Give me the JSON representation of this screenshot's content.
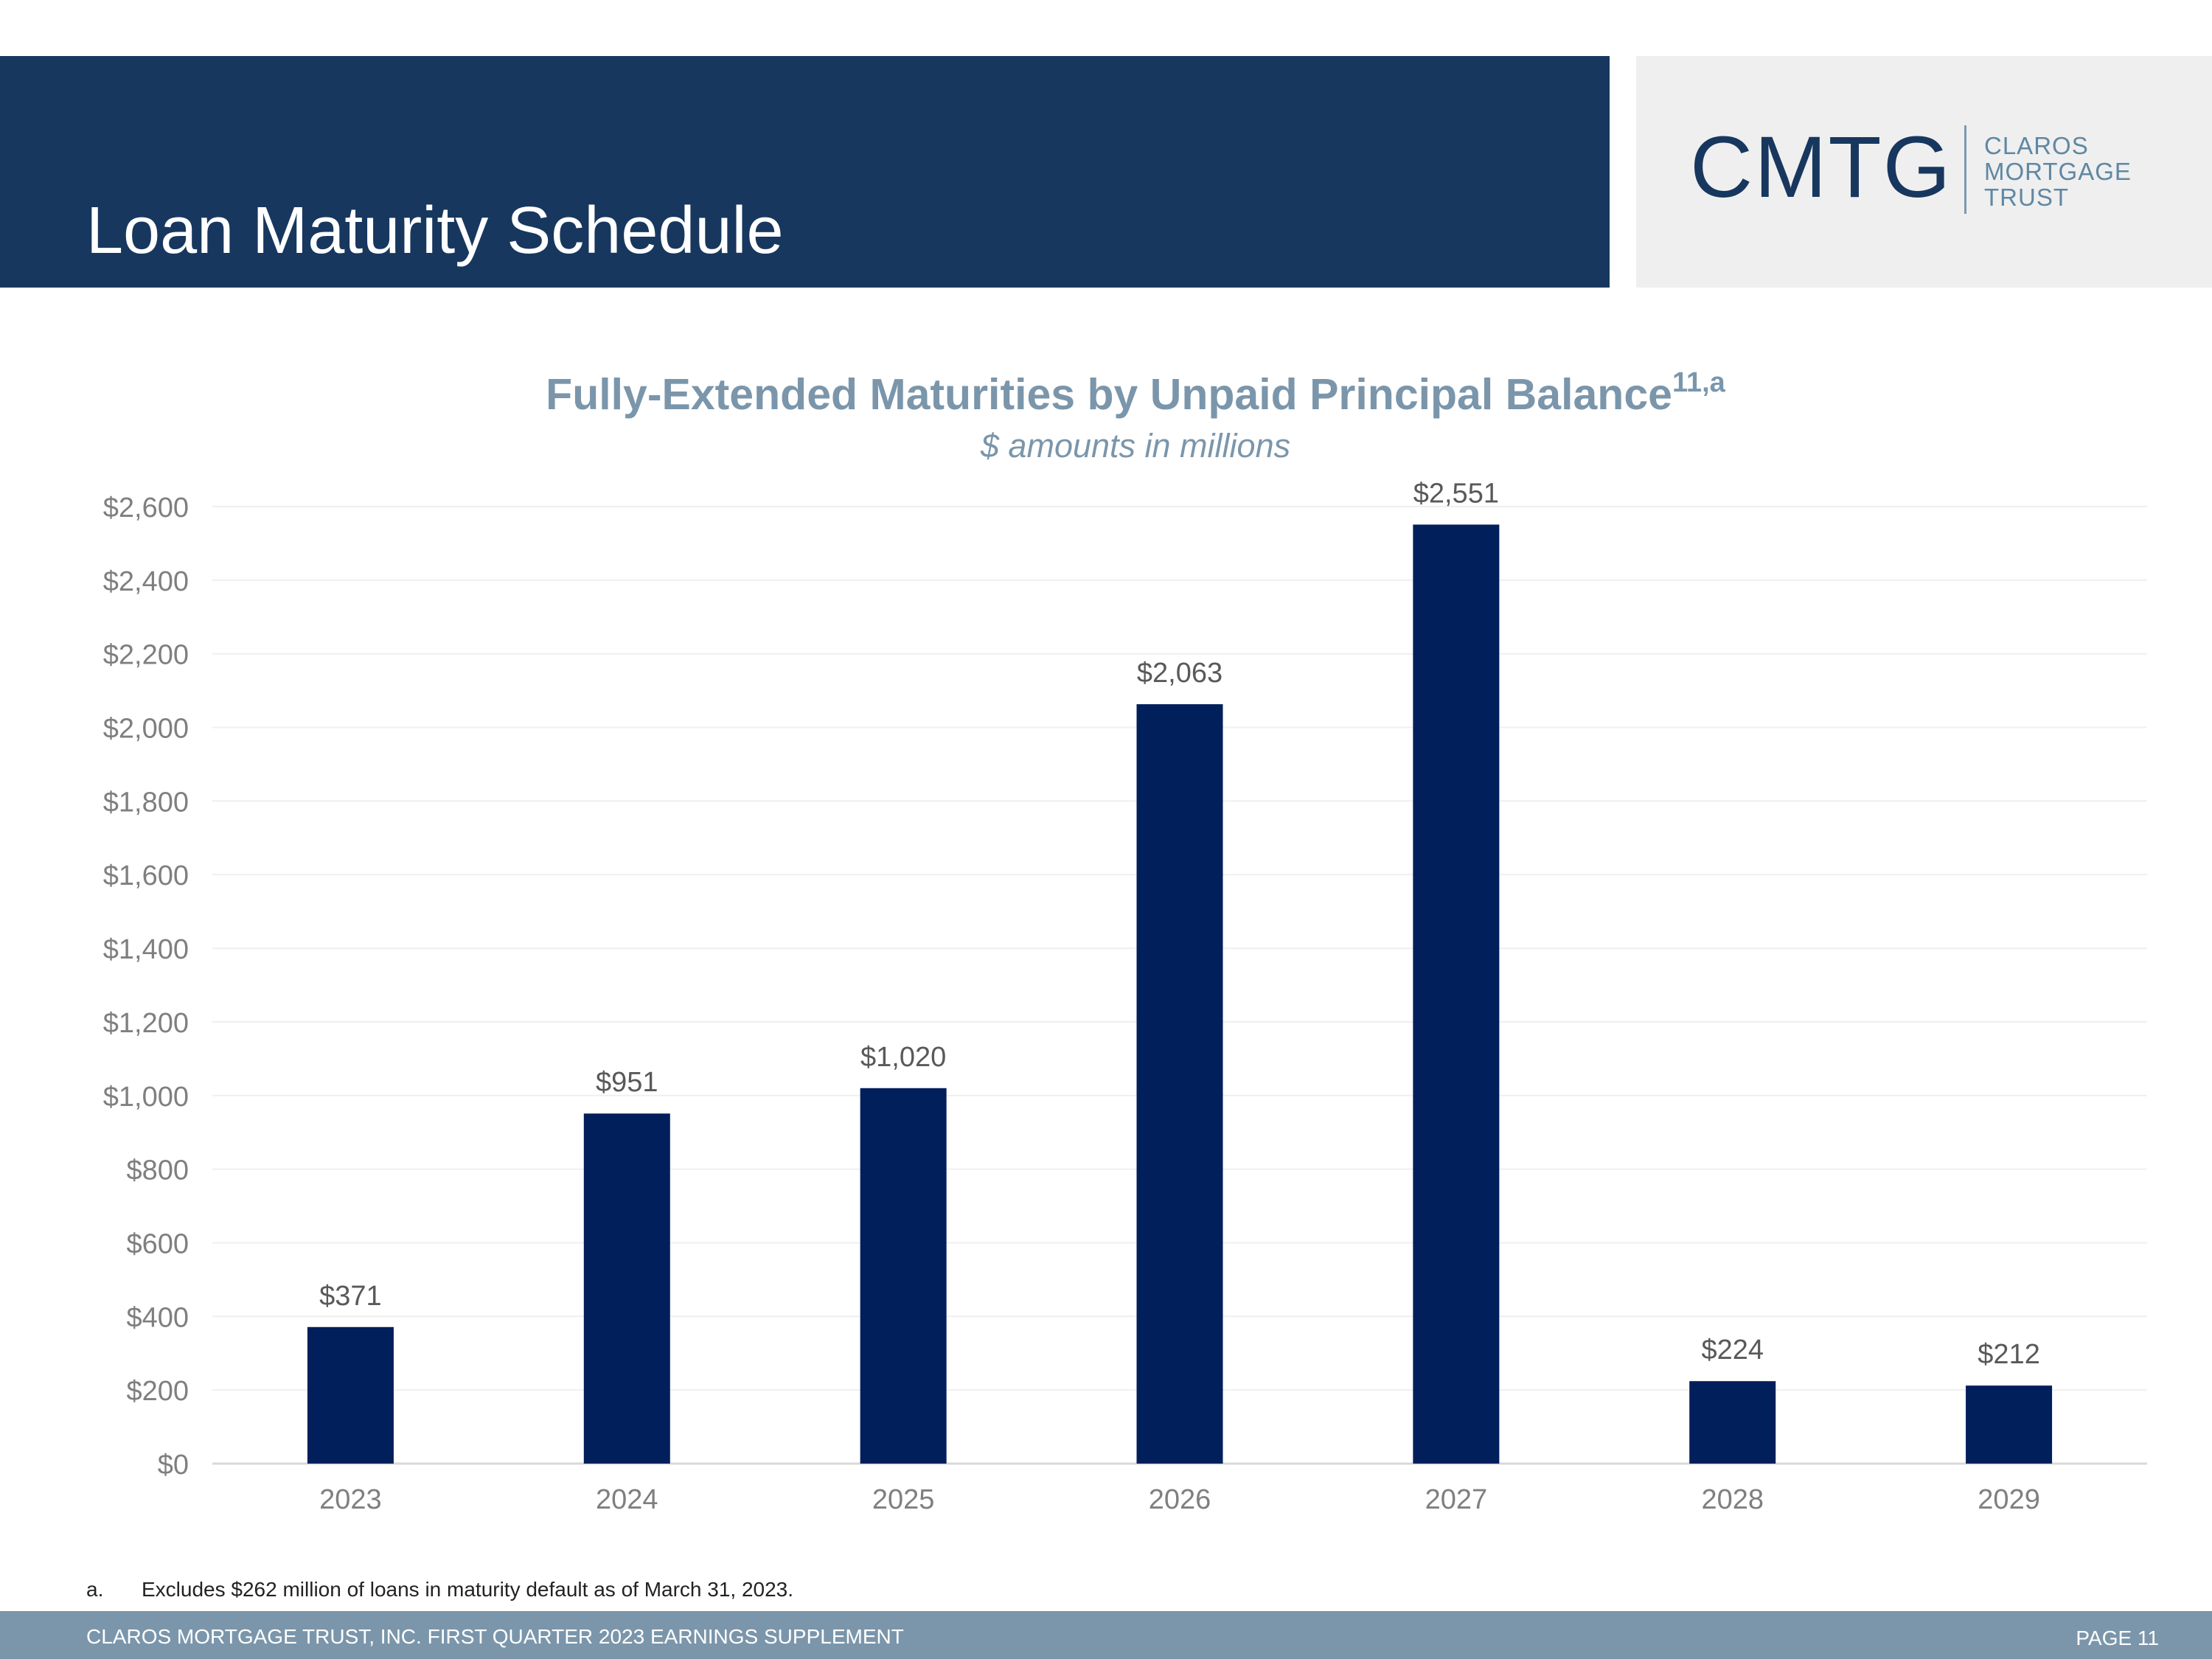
{
  "header": {
    "title": "Loan Maturity Schedule"
  },
  "logo": {
    "mark": "CMTG",
    "words": [
      "CLAROS",
      "MORTGAGE",
      "TRUST"
    ]
  },
  "chart_data": {
    "type": "bar",
    "title": "Fully-Extended Maturities by Unpaid Principal Balance",
    "title_superscript": "11,a",
    "subtitle": "$ amounts in millions",
    "categories": [
      "2023",
      "2024",
      "2025",
      "2026",
      "2027",
      "2028",
      "2029"
    ],
    "values": [
      371,
      951,
      1020,
      2063,
      2551,
      224,
      212
    ],
    "data_labels": [
      "$371",
      "$951",
      "$1,020",
      "$2,063",
      "$2,551",
      "$224",
      "$212"
    ],
    "ylim": [
      0,
      2600
    ],
    "yticks": [
      0,
      200,
      400,
      600,
      800,
      1000,
      1200,
      1400,
      1600,
      1800,
      2000,
      2200,
      2400,
      2600
    ],
    "ytick_labels": [
      "$0",
      "$200",
      "$400",
      "$600",
      "$800",
      "$1,000",
      "$1,200",
      "$1,400",
      "$1,600",
      "$1,800",
      "$2,000",
      "$2,200",
      "$2,400",
      "$2,600"
    ],
    "grid": true,
    "bar_color": "#001f5b",
    "xlabel": "",
    "ylabel": ""
  },
  "footnote": {
    "marker": "a.",
    "text": "Excludes $262 million of loans in maturity default as of March 31, 2023."
  },
  "footer": {
    "left": "CLAROS MORTGAGE TRUST, INC. FIRST QUARTER 2023 EARNINGS SUPPLEMENT",
    "right": "PAGE 11"
  }
}
